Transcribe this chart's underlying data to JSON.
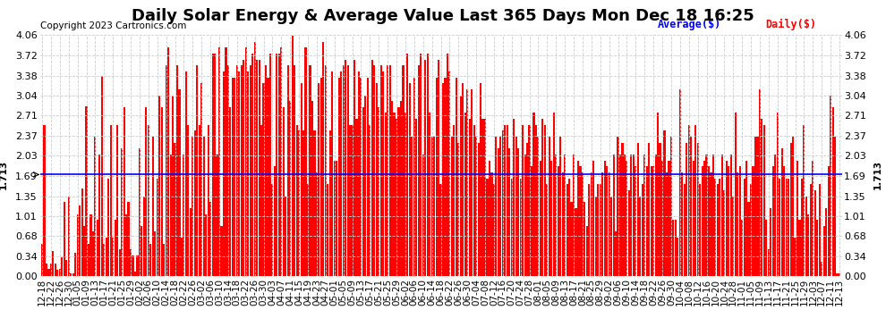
{
  "title": "Daily Solar Energy & Average Value Last 365 Days Mon Dec 18 16:25",
  "copyright": "Copyright 2023 Cartronics.com",
  "average_value": 1.713,
  "average_label": "1.713",
  "yticks": [
    0.0,
    0.34,
    0.68,
    1.01,
    1.35,
    1.69,
    2.03,
    2.37,
    2.71,
    3.04,
    3.38,
    3.72,
    4.06
  ],
  "ylim": [
    0,
    4.06
  ],
  "bar_color": "#ff0000",
  "average_line_color": "#0000ff",
  "background_color": "#ffffff",
  "grid_color": "#cccccc",
  "legend_avg_color": "#0000ff",
  "legend_daily_color": "#ff0000",
  "title_fontsize": 13,
  "copyright_fontsize": 7.5,
  "tick_fontsize": 8,
  "values": [
    0.54,
    2.54,
    0.22,
    0.13,
    0.22,
    0.42,
    0.22,
    0.11,
    0.13,
    0.32,
    1.25,
    0.28,
    1.35,
    0.05,
    0.05,
    0.4,
    1.05,
    1.2,
    1.48,
    0.85,
    2.87,
    0.55,
    1.05,
    0.75,
    2.35,
    0.95,
    2.05,
    3.38,
    0.55,
    0.65,
    1.65,
    2.55,
    0.65,
    0.95,
    2.55,
    0.45,
    2.15,
    2.85,
    1.05,
    1.25,
    0.45,
    0.35,
    0.08,
    0.35,
    2.15,
    0.85,
    1.35,
    2.85,
    2.55,
    0.55,
    2.35,
    0.75,
    1.65,
    3.05,
    2.85,
    0.55,
    3.55,
    3.85,
    2.05,
    3.05,
    2.25,
    3.55,
    3.15,
    0.65,
    2.05,
    3.45,
    2.55,
    1.15,
    2.35,
    2.45,
    3.55,
    2.55,
    3.25,
    2.35,
    1.05,
    2.55,
    1.25,
    3.75,
    3.75,
    2.05,
    3.85,
    0.85,
    3.45,
    3.85,
    3.55,
    2.85,
    3.35,
    3.35,
    3.55,
    3.45,
    3.55,
    3.65,
    3.85,
    3.45,
    3.55,
    3.75,
    3.95,
    3.65,
    3.65,
    2.55,
    3.25,
    3.55,
    3.35,
    3.75,
    1.55,
    1.85,
    3.75,
    3.75,
    3.85,
    2.85,
    1.35,
    3.55,
    2.95,
    4.05,
    3.55,
    2.55,
    2.45,
    3.25,
    2.45,
    3.85,
    1.55,
    3.55,
    2.95,
    2.45,
    1.75,
    3.25,
    3.35,
    3.95,
    3.55,
    1.55,
    2.45,
    3.45,
    1.95,
    1.95,
    3.35,
    3.45,
    3.55,
    3.65,
    3.55,
    2.55,
    2.55,
    3.65,
    2.65,
    3.45,
    3.35,
    2.85,
    3.05,
    3.35,
    2.55,
    3.65,
    3.55,
    3.25,
    2.85,
    3.55,
    3.45,
    2.75,
    3.55,
    3.55,
    2.95,
    2.75,
    2.65,
    2.85,
    2.95,
    3.55,
    2.75,
    3.75,
    3.25,
    2.35,
    3.35,
    2.65,
    3.55,
    3.75,
    2.05,
    3.65,
    3.75,
    2.75,
    2.35,
    2.35,
    3.35,
    3.65,
    1.55,
    3.25,
    3.35,
    3.75,
    3.45,
    2.35,
    2.55,
    3.35,
    2.25,
    3.05,
    3.25,
    2.75,
    3.15,
    2.65,
    3.15,
    2.55,
    2.35,
    2.25,
    3.25,
    2.65,
    2.65,
    1.65,
    1.95,
    1.75,
    1.55,
    2.35,
    2.15,
    2.35,
    2.45,
    2.55,
    2.55,
    2.15,
    1.65,
    2.65,
    2.35,
    2.15,
    1.65,
    2.55,
    2.05,
    2.25,
    2.55,
    1.85,
    2.75,
    2.55,
    2.35,
    1.95,
    2.65,
    2.55,
    1.55,
    2.35,
    1.95,
    2.75,
    2.05,
    1.85,
    2.35,
    1.75,
    2.05,
    1.55,
    1.65,
    1.25,
    2.05,
    1.15,
    1.95,
    1.85,
    1.75,
    1.25,
    0.85,
    1.55,
    1.75,
    1.95,
    1.35,
    1.55,
    1.55,
    1.75,
    1.95,
    1.85,
    1.75,
    1.35,
    2.05,
    0.75,
    2.35,
    2.05,
    2.25,
    2.05,
    1.95,
    1.45,
    2.05,
    2.05,
    1.85,
    2.25,
    1.35,
    1.55,
    2.05,
    1.85,
    2.25,
    1.85,
    1.85,
    2.05,
    2.75,
    2.25,
    1.95,
    2.45,
    1.75,
    1.95,
    2.35,
    0.95,
    0.95,
    0.65,
    3.15,
    1.75,
    1.55,
    2.25,
    2.55,
    2.35,
    1.95,
    2.55,
    2.25,
    1.55,
    1.85,
    1.95,
    2.05,
    1.85,
    1.75,
    2.05,
    1.65,
    1.55,
    1.65,
    2.05,
    1.45,
    1.95,
    1.85,
    2.05,
    1.35,
    2.75,
    1.75,
    1.85,
    0.95,
    1.65,
    1.95,
    1.25,
    1.55,
    1.85,
    2.35,
    2.35,
    3.15,
    2.65,
    2.55,
    0.95,
    0.45,
    1.15,
    1.85,
    2.05,
    2.75,
    1.65,
    2.15,
    1.85,
    1.65,
    1.65,
    2.25,
    2.35,
    0.65,
    1.95,
    0.95,
    1.65,
    2.55,
    1.35,
    1.05,
    1.55,
    1.95,
    1.45,
    0.95,
    1.55,
    0.25,
    0.85,
    1.15,
    1.85,
    3.05,
    2.85,
    2.35,
    0.05,
    0.05
  ],
  "xtick_indices": [
    0,
    4,
    8,
    12,
    16,
    20,
    24,
    28,
    32,
    36,
    40,
    44,
    48,
    52,
    56,
    60,
    64,
    68,
    72,
    76,
    80,
    84,
    88,
    92,
    96,
    100,
    104,
    108,
    112,
    116,
    120,
    124,
    128,
    132,
    136,
    140,
    144,
    148,
    152,
    156,
    160,
    164,
    168,
    172,
    176,
    180,
    184,
    188,
    192,
    196,
    200,
    204,
    208,
    212,
    216,
    220,
    224,
    228,
    232,
    236,
    240,
    244,
    248,
    252,
    256,
    260,
    264,
    268,
    272,
    276,
    280,
    284,
    288,
    292,
    296,
    300,
    304,
    308,
    312,
    316,
    320,
    324,
    328,
    332,
    336,
    340,
    344,
    348,
    352,
    356,
    360
  ],
  "xtick_labels": [
    "12-18",
    "12-22",
    "12-26",
    "12-30",
    "01-05",
    "01-09",
    "01-13",
    "01-17",
    "01-21",
    "01-25",
    "01-29",
    "02-02",
    "02-06",
    "02-10",
    "02-14",
    "02-18",
    "02-22",
    "02-26",
    "03-02",
    "03-06",
    "03-10",
    "03-14",
    "03-18",
    "03-22",
    "03-26",
    "03-30",
    "04-03",
    "04-07",
    "04-11",
    "04-15",
    "04-19",
    "04-23",
    "04-27",
    "05-01",
    "05-05",
    "05-09",
    "05-13",
    "05-17",
    "05-21",
    "05-25",
    "05-29",
    "06-02",
    "06-06",
    "06-10",
    "06-14",
    "06-18",
    "06-22",
    "06-26",
    "06-30",
    "07-04",
    "07-08",
    "07-12",
    "07-16",
    "07-20",
    "07-24",
    "07-28",
    "08-01",
    "08-05",
    "08-09",
    "08-13",
    "08-17",
    "08-21",
    "08-25",
    "08-29",
    "09-02",
    "09-06",
    "09-10",
    "09-14",
    "09-18",
    "09-22",
    "09-26",
    "09-30",
    "10-04",
    "10-08",
    "10-12",
    "10-16",
    "10-20",
    "10-24",
    "10-28",
    "11-01",
    "11-05",
    "11-09",
    "11-13",
    "11-17",
    "11-21",
    "11-25",
    "11-29",
    "12-03",
    "12-07",
    "12-11",
    "12-13"
  ]
}
